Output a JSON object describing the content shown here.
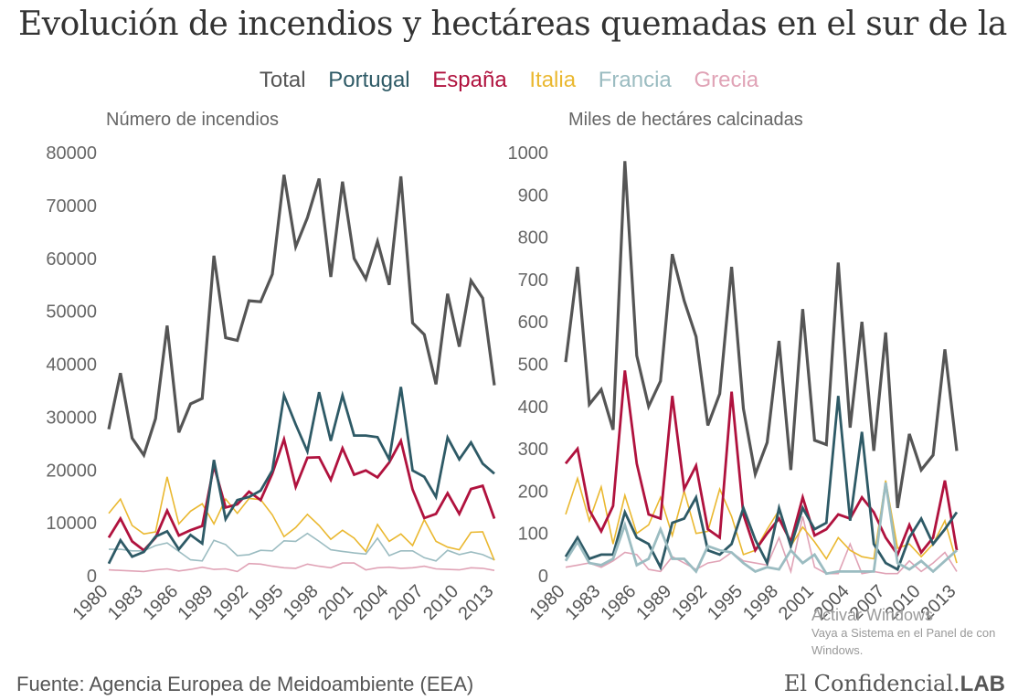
{
  "title": "Evolución de incendios y hectáreas quemadas en el sur de la UE",
  "legend": [
    {
      "label": "Total",
      "color": "#555555"
    },
    {
      "label": "Portugal",
      "color": "#2e5a66"
    },
    {
      "label": "España",
      "color": "#b0123e"
    },
    {
      "label": "Italia",
      "color": "#eab830"
    },
    {
      "label": "Francia",
      "color": "#9bbcc1"
    },
    {
      "label": "Grecia",
      "color": "#e0a3b6"
    }
  ],
  "source": "Fuente: Agencia Europea de Meidoambiente (EEA)",
  "brand": {
    "name": "El Confidencial.",
    "suffix": "LAB"
  },
  "watermark": {
    "line1": "Activar Windows",
    "line2": "Vaya a Sistema en el Panel de con",
    "line3": "Windows."
  },
  "chart_data": [
    {
      "type": "line",
      "title": "Número de incendios",
      "ylim": [
        0,
        80000
      ],
      "yticks": [
        "0",
        "10000",
        "20000",
        "30000",
        "40000",
        "50000",
        "60000",
        "70000",
        "80000"
      ],
      "xtick_labels": [
        "1980",
        "1983",
        "1986",
        "1989",
        "1992",
        "1995",
        "1998",
        "2001",
        "2004",
        "2007",
        "2010",
        "2013"
      ],
      "x": [
        1980,
        1981,
        1982,
        1983,
        1984,
        1985,
        1986,
        1987,
        1988,
        1989,
        1990,
        1991,
        1992,
        1993,
        1994,
        1995,
        1996,
        1997,
        1998,
        1999,
        2000,
        2001,
        2002,
        2003,
        2004,
        2005,
        2006,
        2007,
        2008,
        2009,
        2010,
        2011,
        2012,
        2013
      ],
      "series": [
        {
          "name": "Grecia",
          "values": [
            1100,
            1000,
            900,
            800,
            1100,
            1300,
            900,
            1200,
            1600,
            1200,
            1300,
            800,
            2300,
            2200,
            1800,
            1500,
            1400,
            2200,
            1800,
            1500,
            2400,
            2400,
            1100,
            1500,
            1600,
            1400,
            1500,
            1800,
            1300,
            1200,
            1100,
            1500,
            1400,
            1000
          ]
        },
        {
          "name": "Francia",
          "values": [
            5000,
            5000,
            4700,
            4700,
            5700,
            6200,
            4600,
            3000,
            2800,
            6700,
            5900,
            3800,
            4000,
            4800,
            4700,
            6600,
            6500,
            8000,
            6500,
            4900,
            4600,
            4300,
            4100,
            7100,
            3800,
            4700,
            4700,
            3400,
            2800,
            4800,
            4000,
            4500,
            4000,
            3000
          ]
        },
        {
          "name": "Italia",
          "values": [
            11800,
            14500,
            9500,
            7900,
            8300,
            18700,
            9800,
            12200,
            13600,
            9800,
            14500,
            11800,
            14600,
            14400,
            11500,
            7400,
            9100,
            11600,
            9500,
            6900,
            8600,
            7100,
            4600,
            9700,
            6500,
            7900,
            5700,
            10600,
            6500,
            5400,
            4900,
            8200,
            8300,
            2900
          ]
        },
        {
          "name": "España",
          "values": [
            7200,
            10800,
            6500,
            4800,
            7200,
            12300,
            7600,
            8600,
            9400,
            20800,
            12900,
            13500,
            15900,
            14300,
            19300,
            25800,
            16800,
            22300,
            22400,
            18100,
            24100,
            19100,
            19900,
            18600,
            21400,
            25500,
            16300,
            10900,
            11700,
            15600,
            11700,
            16400,
            17000,
            10800
          ]
        },
        {
          "name": "Portugal",
          "values": [
            2300,
            6700,
            3600,
            4500,
            7400,
            8400,
            5000,
            7700,
            6100,
            21900,
            10700,
            14300,
            14900,
            16100,
            19900,
            34100,
            28600,
            23500,
            34700,
            25500,
            34100,
            26500,
            26500,
            26200,
            22000,
            35700,
            19900,
            18700,
            14900,
            26100,
            22000,
            25200,
            21200,
            19300
          ]
        },
        {
          "name": "Total",
          "values": [
            27700,
            38300,
            26000,
            22800,
            29700,
            47300,
            27100,
            32500,
            33500,
            60500,
            45000,
            44500,
            52000,
            51800,
            57000,
            75800,
            62200,
            67700,
            75100,
            56500,
            74500,
            60000,
            56100,
            63200,
            55000,
            75500,
            47800,
            45600,
            36200,
            53300,
            43300,
            55800,
            52500,
            36000
          ]
        }
      ]
    },
    {
      "type": "line",
      "title": "Miles de hectáres calcinadas",
      "ylim": [
        0,
        1000
      ],
      "yticks": [
        "0",
        "100",
        "200",
        "300",
        "400",
        "500",
        "600",
        "700",
        "800",
        "900",
        "1000"
      ],
      "xtick_labels": [
        "1980",
        "1983",
        "1986",
        "1989",
        "1992",
        "1995",
        "1998",
        "2001",
        "2004",
        "2007",
        "2010",
        "2013"
      ],
      "x": [
        1980,
        1981,
        1982,
        1983,
        1984,
        1985,
        1986,
        1987,
        1988,
        1989,
        1990,
        1991,
        1992,
        1993,
        1994,
        1995,
        1996,
        1997,
        1998,
        1999,
        2000,
        2001,
        2002,
        2003,
        2004,
        2005,
        2006,
        2007,
        2008,
        2009,
        2010,
        2011,
        2012,
        2013
      ],
      "series": [
        {
          "name": "Grecia",
          "values": [
            20,
            25,
            30,
            20,
            35,
            55,
            50,
            15,
            10,
            45,
            30,
            15,
            30,
            35,
            55,
            35,
            30,
            25,
            90,
            10,
            140,
            20,
            5,
            5,
            75,
            5,
            10,
            5,
            5,
            35,
            10,
            30,
            55,
            10
          ]
        },
        {
          "name": "Italia",
          "values": [
            145,
            230,
            130,
            210,
            75,
            190,
            100,
            120,
            185,
            95,
            200,
            100,
            105,
            205,
            140,
            50,
            60,
            110,
            155,
            70,
            115,
            80,
            40,
            90,
            60,
            45,
            40,
            225,
            65,
            75,
            45,
            75,
            130,
            30
          ]
        },
        {
          "name": "España",
          "values": [
            265,
            300,
            155,
            105,
            165,
            485,
            265,
            145,
            135,
            425,
            205,
            260,
            110,
            90,
            435,
            145,
            60,
            100,
            135,
            80,
            185,
            95,
            110,
            145,
            135,
            185,
            150,
            90,
            50,
            120,
            55,
            90,
            225,
            60
          ]
        },
        {
          "name": "Portugal",
          "values": [
            45,
            90,
            40,
            50,
            50,
            150,
            90,
            75,
            20,
            125,
            135,
            185,
            60,
            50,
            75,
            160,
            85,
            30,
            160,
            70,
            160,
            110,
            125,
            425,
            130,
            340,
            75,
            30,
            15,
            90,
            135,
            75,
            110,
            150
          ]
        },
        {
          "name": "Francia",
          "values": [
            35,
            80,
            30,
            25,
            40,
            120,
            25,
            40,
            110,
            40,
            40,
            10,
            70,
            60,
            55,
            30,
            10,
            20,
            15,
            60,
            30,
            50,
            5,
            10,
            10,
            10,
            10,
            220,
            30,
            15,
            35,
            10,
            35,
            60
          ]
        },
        {
          "name": "Total",
          "values": [
            505,
            730,
            405,
            440,
            345,
            980,
            520,
            400,
            460,
            760,
            650,
            565,
            355,
            430,
            730,
            395,
            240,
            315,
            555,
            250,
            630,
            320,
            310,
            740,
            350,
            600,
            295,
            575,
            160,
            335,
            250,
            285,
            535,
            295
          ]
        }
      ]
    }
  ]
}
